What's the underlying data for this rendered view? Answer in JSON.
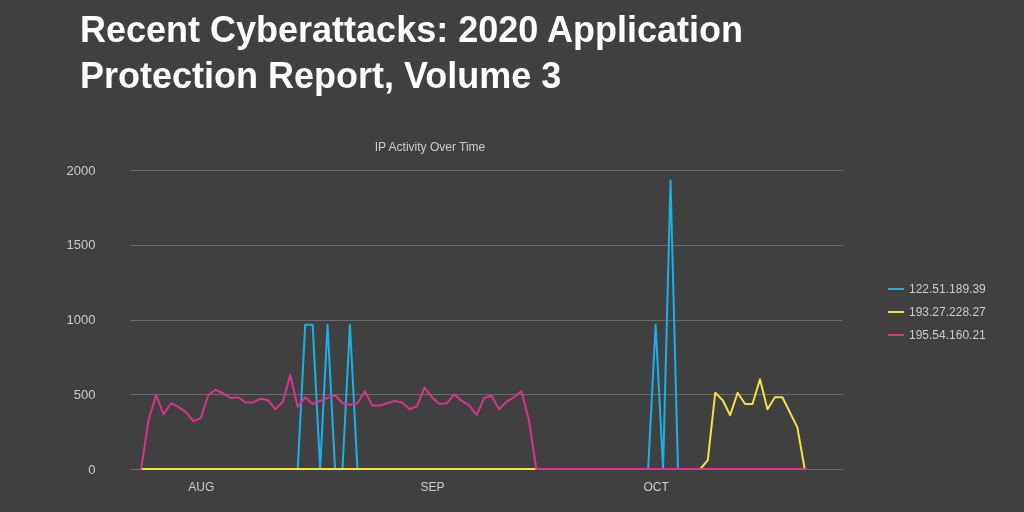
{
  "chart_data": {
    "type": "line",
    "title": "Recent Cyberattacks: 2020 Application Protection Report, Volume 3",
    "subtitle": "IP Activity Over Time",
    "x": [
      "2020-07-24",
      "2020-07-25",
      "2020-07-26",
      "2020-07-27",
      "2020-07-28",
      "2020-07-29",
      "2020-07-30",
      "2020-07-31",
      "2020-08-01",
      "2020-08-02",
      "2020-08-03",
      "2020-08-04",
      "2020-08-05",
      "2020-08-06",
      "2020-08-07",
      "2020-08-08",
      "2020-08-09",
      "2020-08-10",
      "2020-08-11",
      "2020-08-12",
      "2020-08-13",
      "2020-08-14",
      "2020-08-15",
      "2020-08-16",
      "2020-08-17",
      "2020-08-18",
      "2020-08-19",
      "2020-08-20",
      "2020-08-21",
      "2020-08-22",
      "2020-08-23",
      "2020-08-24",
      "2020-08-25",
      "2020-08-26",
      "2020-08-27",
      "2020-08-28",
      "2020-08-29",
      "2020-08-30",
      "2020-08-31",
      "2020-09-01",
      "2020-09-02",
      "2020-09-03",
      "2020-09-04",
      "2020-09-05",
      "2020-09-06",
      "2020-09-07",
      "2020-09-08",
      "2020-09-09",
      "2020-09-10",
      "2020-09-11",
      "2020-09-12",
      "2020-09-13",
      "2020-09-14",
      "2020-09-15",
      "2020-09-16",
      "2020-09-17",
      "2020-09-18",
      "2020-09-19",
      "2020-09-20",
      "2020-09-21",
      "2020-09-22",
      "2020-09-23",
      "2020-09-24",
      "2020-09-25",
      "2020-09-26",
      "2020-09-27",
      "2020-09-28",
      "2020-09-29",
      "2020-09-30",
      "2020-10-01",
      "2020-10-02",
      "2020-10-03",
      "2020-10-04",
      "2020-10-05",
      "2020-10-06",
      "2020-10-07",
      "2020-10-08",
      "2020-10-09",
      "2020-10-10",
      "2020-10-11",
      "2020-10-12",
      "2020-10-13",
      "2020-10-14",
      "2020-10-15",
      "2020-10-16",
      "2020-10-17",
      "2020-10-18",
      "2020-10-19",
      "2020-10-20",
      "2020-10-21"
    ],
    "series": [
      {
        "name": "122.51.189.39",
        "color": "#1ab0e8",
        "values": [
          null,
          null,
          null,
          null,
          null,
          null,
          null,
          null,
          null,
          null,
          null,
          null,
          null,
          null,
          null,
          null,
          null,
          null,
          null,
          null,
          null,
          0,
          965,
          965,
          0,
          965,
          0,
          0,
          965,
          0,
          null,
          null,
          null,
          null,
          null,
          null,
          null,
          null,
          null,
          null,
          null,
          null,
          null,
          null,
          null,
          null,
          null,
          null,
          null,
          null,
          null,
          null,
          null,
          null,
          null,
          null,
          null,
          null,
          null,
          null,
          null,
          null,
          null,
          null,
          null,
          null,
          null,
          null,
          0,
          965,
          0,
          1930,
          0,
          null,
          null,
          null,
          null,
          null,
          null,
          null,
          null,
          null,
          null,
          null,
          null,
          null,
          null,
          null,
          null,
          null
        ]
      },
      {
        "name": "193.27.228.27",
        "color": "#f2e33f",
        "values": [
          0,
          0,
          0,
          0,
          0,
          0,
          0,
          0,
          0,
          0,
          0,
          0,
          0,
          0,
          0,
          0,
          0,
          0,
          0,
          0,
          0,
          0,
          0,
          0,
          0,
          0,
          0,
          0,
          0,
          0,
          0,
          0,
          0,
          0,
          0,
          0,
          0,
          0,
          0,
          0,
          0,
          0,
          0,
          0,
          0,
          0,
          0,
          0,
          0,
          0,
          0,
          0,
          0,
          0,
          null,
          null,
          null,
          null,
          null,
          null,
          null,
          null,
          null,
          null,
          null,
          null,
          null,
          null,
          null,
          null,
          null,
          null,
          null,
          null,
          null,
          0,
          60,
          510,
          460,
          360,
          510,
          435,
          435,
          600,
          400,
          480,
          480,
          380,
          280,
          0
        ]
      },
      {
        "name": "195.54.160.21",
        "color": "#d9338f",
        "values": [
          0,
          330,
          495,
          365,
          440,
          415,
          380,
          320,
          340,
          495,
          530,
          505,
          475,
          480,
          445,
          445,
          470,
          460,
          400,
          450,
          630,
          415,
          480,
          435,
          455,
          475,
          495,
          440,
          430,
          440,
          520,
          425,
          425,
          440,
          455,
          445,
          400,
          420,
          545,
          480,
          435,
          440,
          500,
          455,
          425,
          360,
          475,
          490,
          400,
          450,
          480,
          520,
          330,
          0,
          0,
          0,
          0,
          0,
          0,
          0,
          0,
          0,
          0,
          0,
          0,
          0,
          0,
          0,
          0,
          0,
          0,
          0,
          0,
          0,
          0,
          0,
          0,
          0,
          0,
          0,
          0,
          0,
          0,
          0,
          0,
          0,
          0,
          0,
          0,
          0
        ]
      }
    ],
    "xlim": [
      "2020-07-22T12:00",
      "2020-10-26"
    ],
    "xticks": [
      {
        "value": "2020-08-01",
        "label": "AUG"
      },
      {
        "value": "2020-09-01",
        "label": "SEP"
      },
      {
        "value": "2020-10-01",
        "label": "OCT"
      }
    ],
    "ylim": [
      0,
      2000
    ],
    "yticks": [
      0,
      500,
      1000,
      1500,
      2000
    ],
    "grid": "y",
    "legend": "right"
  }
}
